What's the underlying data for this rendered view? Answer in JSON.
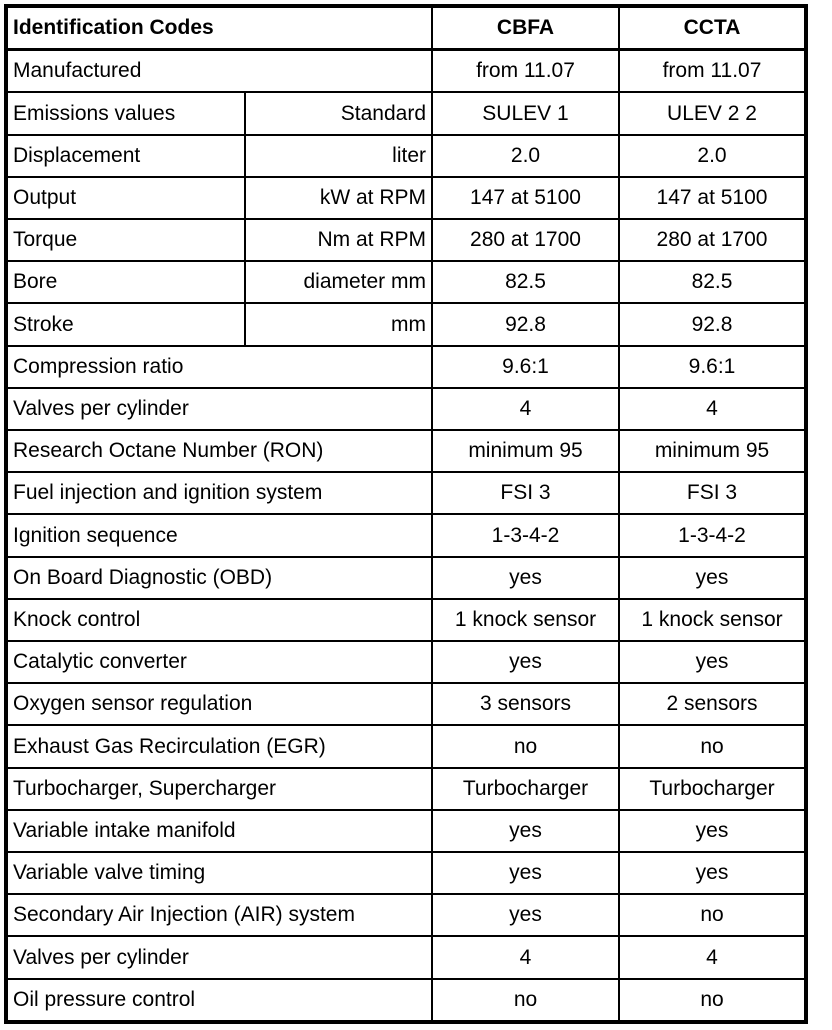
{
  "header": {
    "title": "Identification Codes",
    "col1": "CBFA",
    "col2": "CCTA"
  },
  "rows": [
    {
      "label": "Manufactured",
      "unit": "",
      "a": "from 11.07",
      "b": "from 11.07"
    },
    {
      "label": "Emissions values",
      "unit": "Standard",
      "a": "SULEV 1",
      "b": "ULEV 2 2"
    },
    {
      "label": "Displacement",
      "unit": "liter",
      "a": "2.0",
      "b": "2.0"
    },
    {
      "label": "Output",
      "unit": "kW at RPM",
      "a": "147 at 5100",
      "b": "147 at 5100"
    },
    {
      "label": "Torque",
      "unit": "Nm at RPM",
      "a": "280 at 1700",
      "b": "280 at 1700"
    },
    {
      "label": "Bore",
      "unit": "diameter mm",
      "a": "82.5",
      "b": "82.5"
    },
    {
      "label": "Stroke",
      "unit": "mm",
      "a": "92.8",
      "b": "92.8"
    },
    {
      "label": "Compression ratio",
      "unit": "",
      "a": "9.6:1",
      "b": "9.6:1"
    },
    {
      "label": "Valves per cylinder",
      "unit": "",
      "a": "4",
      "b": "4"
    },
    {
      "label": "Research Octane Number (RON)",
      "unit": "",
      "a": "minimum 95",
      "b": "minimum 95"
    },
    {
      "label": "Fuel injection and ignition system",
      "unit": "",
      "a": "FSI 3",
      "b": "FSI 3"
    },
    {
      "label": "Ignition sequence",
      "unit": "",
      "a": "1-3-4-2",
      "b": "1-3-4-2"
    },
    {
      "label": "On Board Diagnostic (OBD)",
      "unit": "",
      "a": "yes",
      "b": "yes"
    },
    {
      "label": "Knock control",
      "unit": "",
      "a": "1 knock sensor",
      "b": "1 knock sensor"
    },
    {
      "label": "Catalytic converter",
      "unit": "",
      "a": "yes",
      "b": "yes"
    },
    {
      "label": "Oxygen sensor regulation",
      "unit": "",
      "a": "3 sensors",
      "b": "2 sensors"
    },
    {
      "label": "Exhaust Gas Recirculation (EGR)",
      "unit": "",
      "a": "no",
      "b": "no"
    },
    {
      "label": "Turbocharger, Supercharger",
      "unit": "",
      "a": "Turbocharger",
      "b": "Turbocharger"
    },
    {
      "label": "Variable intake manifold",
      "unit": "",
      "a": "yes",
      "b": "yes"
    },
    {
      "label": "Variable valve timing",
      "unit": "",
      "a": "yes",
      "b": "yes"
    },
    {
      "label": "Secondary Air Injection (AIR) system",
      "unit": "",
      "a": "yes",
      "b": "no"
    },
    {
      "label": "Valves per cylinder",
      "unit": "",
      "a": "4",
      "b": "4"
    },
    {
      "label": "Oil pressure control",
      "unit": "",
      "a": "no",
      "b": "no"
    }
  ]
}
